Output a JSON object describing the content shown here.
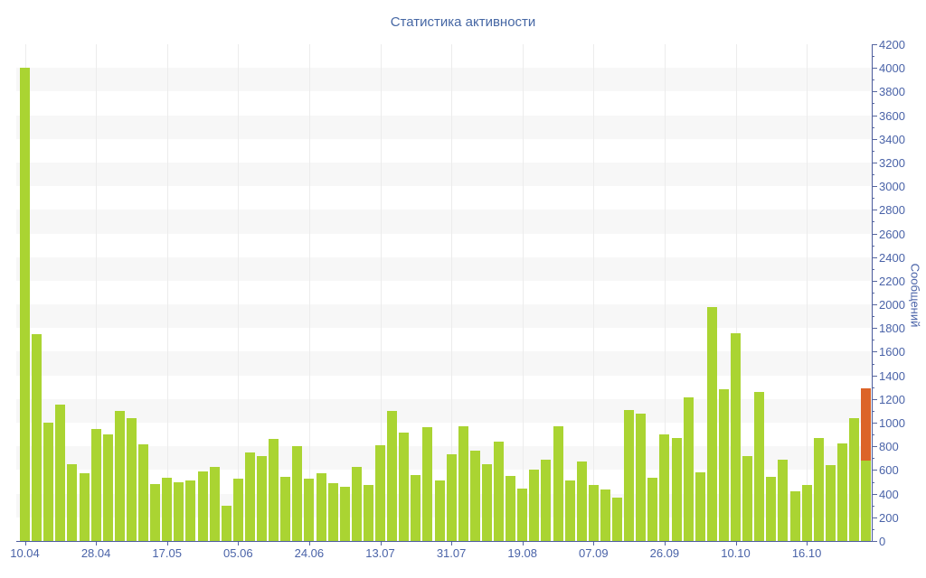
{
  "chart_data": {
    "type": "bar",
    "title": "Статистика активности",
    "ylabel": "Сообщений",
    "xlabel": "",
    "ylim": [
      0,
      4200
    ],
    "y_tick_step": 200,
    "y_minor_tick_step": 100,
    "grid": "alternating horizontal bands every 200, faint vertical line at each x tick",
    "legend_position": "none",
    "colors": {
      "bar": "#aad432",
      "highlight_bar": "#dc6428",
      "axis_line": "#4c5c9c",
      "tick_text": "#4a63a8",
      "title_text": "#4667a4",
      "band": "#f7f7f7",
      "vgrid": "#ececec"
    },
    "x_tick_labels": [
      {
        "index": 0,
        "label": "10.04"
      },
      {
        "index": 6,
        "label": "28.04"
      },
      {
        "index": 12,
        "label": "17.05"
      },
      {
        "index": 18,
        "label": "05.06"
      },
      {
        "index": 24,
        "label": "24.06"
      },
      {
        "index": 30,
        "label": "13.07"
      },
      {
        "index": 36,
        "label": "31.07"
      },
      {
        "index": 42,
        "label": "19.08"
      },
      {
        "index": 48,
        "label": "07.09"
      },
      {
        "index": 54,
        "label": "26.09"
      },
      {
        "index": 60,
        "label": "10.10"
      },
      {
        "index": 66,
        "label": "16.10"
      }
    ],
    "values": [
      4000,
      1750,
      1000,
      1150,
      650,
      575,
      950,
      900,
      1100,
      1040,
      820,
      480,
      535,
      495,
      510,
      585,
      630,
      300,
      525,
      750,
      715,
      860,
      545,
      800,
      530,
      570,
      490,
      455,
      630,
      475,
      810,
      1100,
      920,
      560,
      960,
      510,
      730,
      970,
      765,
      650,
      840,
      550,
      445,
      600,
      690,
      970,
      510,
      670,
      470,
      435,
      370,
      1110,
      1075,
      535,
      900,
      870,
      1215,
      580,
      1980,
      1280,
      1760,
      715,
      1260,
      545,
      690,
      420,
      475,
      870,
      645,
      825,
      1040,
      1290
    ],
    "highlight_last_bar": {
      "total_value": 1290,
      "green_base_value": 680,
      "orange_segment": [
        680,
        1290
      ]
    }
  }
}
